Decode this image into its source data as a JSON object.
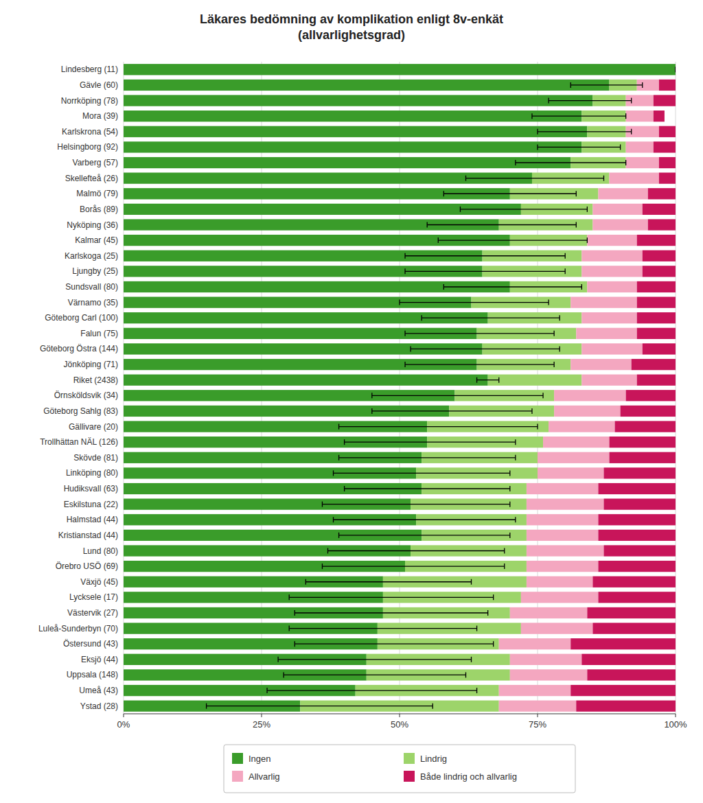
{
  "chart_data": {
    "type": "bar",
    "orientation": "horizontal",
    "stacked": true,
    "title": "Läkares bedömning av komplikation enligt 8v-enkät\n(allvarlighetsgrad)",
    "categories": [
      "Lindesberg (11)",
      "Gävle (60)",
      "Norrköping (78)",
      "Mora (39)",
      "Karlskrona (54)",
      "Helsingborg (92)",
      "Varberg (57)",
      "Skellefteå (26)",
      "Malmö (79)",
      "Borås (89)",
      "Nyköping (36)",
      "Kalmar (45)",
      "Karlskoga (25)",
      "Ljungby (25)",
      "Sundsvall (80)",
      "Värnamo (35)",
      "Göteborg Carl (100)",
      "Falun (75)",
      "Göteborg Östra (144)",
      "Jönköping (71)",
      "Riket (2438)",
      "Örnsköldsvik (34)",
      "Göteborg Sahlg (83)",
      "Gällivare (20)",
      "Trollhättan NÄL (126)",
      "Skövde (81)",
      "Linköping (80)",
      "Hudiksvall (63)",
      "Eskilstuna (22)",
      "Halmstad (44)",
      "Kristianstad (44)",
      "Lund (80)",
      "Örebro USÖ (69)",
      "Växjö (45)",
      "Lycksele (17)",
      "Västervik (27)",
      "Luleå-Sunderbyn (70)",
      "Östersund (43)",
      "Eksjö (44)",
      "Uppsala (148)",
      "Umeå (43)",
      "Ystad (28)"
    ],
    "series": [
      {
        "name": "Ingen",
        "color": "#3a9c2a",
        "values": [
          100,
          88,
          85,
          83,
          84,
          83,
          81,
          74,
          70,
          72,
          68,
          70,
          65,
          65,
          70,
          63,
          66,
          64,
          65,
          64,
          66,
          60,
          59,
          55,
          55,
          54,
          53,
          54,
          52,
          53,
          54,
          52,
          51,
          47,
          47,
          47,
          46,
          46,
          44,
          44,
          42,
          32
        ]
      },
      {
        "name": "Lindrig",
        "color": "#9dd46a",
        "values": [
          0,
          5,
          6,
          8,
          7,
          8,
          10,
          14,
          16,
          13,
          17,
          14,
          18,
          18,
          14,
          18,
          17,
          18,
          18,
          17,
          17,
          18,
          19,
          22,
          21,
          21,
          22,
          19,
          21,
          20,
          19,
          21,
          22,
          26,
          25,
          23,
          26,
          22,
          26,
          26,
          26,
          36
        ]
      },
      {
        "name": "Allvarlig",
        "color": "#f4a7c0",
        "values": [
          0,
          4,
          5,
          5,
          6,
          5,
          6,
          9,
          9,
          9,
          10,
          9,
          11,
          11,
          9,
          12,
          10,
          11,
          11,
          11,
          10,
          13,
          12,
          12,
          12,
          13,
          12,
          13,
          14,
          13,
          13,
          14,
          13,
          12,
          14,
          14,
          13,
          13,
          13,
          14,
          13,
          14
        ]
      },
      {
        "name": "Både lindrig och allvarlig",
        "color": "#c8155a",
        "values": [
          0,
          3,
          4,
          2,
          3,
          4,
          3,
          3,
          5,
          6,
          5,
          7,
          6,
          6,
          7,
          7,
          7,
          7,
          6,
          8,
          7,
          9,
          10,
          11,
          12,
          12,
          13,
          14,
          13,
          14,
          14,
          13,
          14,
          15,
          14,
          16,
          15,
          19,
          17,
          16,
          19,
          18
        ]
      }
    ],
    "error_center": [
      100,
      88,
      85,
      83,
      84,
      83,
      81,
      74,
      70,
      72,
      68,
      70,
      65,
      65,
      70,
      63,
      66,
      64,
      65,
      64,
      66,
      60,
      59,
      55,
      55,
      54,
      53,
      54,
      52,
      53,
      54,
      52,
      51,
      47,
      47,
      47,
      46,
      46,
      44,
      44,
      42,
      32
    ],
    "error_minus": [
      0,
      7,
      8,
      9,
      9,
      8,
      10,
      12,
      12,
      11,
      13,
      13,
      14,
      14,
      12,
      13,
      12,
      13,
      13,
      13,
      2,
      15,
      14,
      16,
      15,
      15,
      15,
      14,
      16,
      15,
      15,
      15,
      15,
      14,
      17,
      16,
      16,
      15,
      16,
      15,
      16,
      17
    ],
    "error_plus": [
      0,
      6,
      7,
      8,
      8,
      7,
      10,
      13,
      12,
      12,
      14,
      14,
      15,
      15,
      13,
      14,
      13,
      14,
      14,
      14,
      2,
      16,
      15,
      20,
      16,
      17,
      17,
      16,
      18,
      18,
      16,
      17,
      18,
      16,
      20,
      19,
      18,
      21,
      19,
      18,
      22,
      24
    ],
    "xlim": [
      0,
      100
    ],
    "xticks": [
      {
        "value": 0,
        "label": "0%"
      },
      {
        "value": 25,
        "label": "25%"
      },
      {
        "value": 50,
        "label": "50%"
      },
      {
        "value": 75,
        "label": "75%"
      },
      {
        "value": 100,
        "label": "100%"
      }
    ],
    "grid": true,
    "legend": "bottom"
  }
}
